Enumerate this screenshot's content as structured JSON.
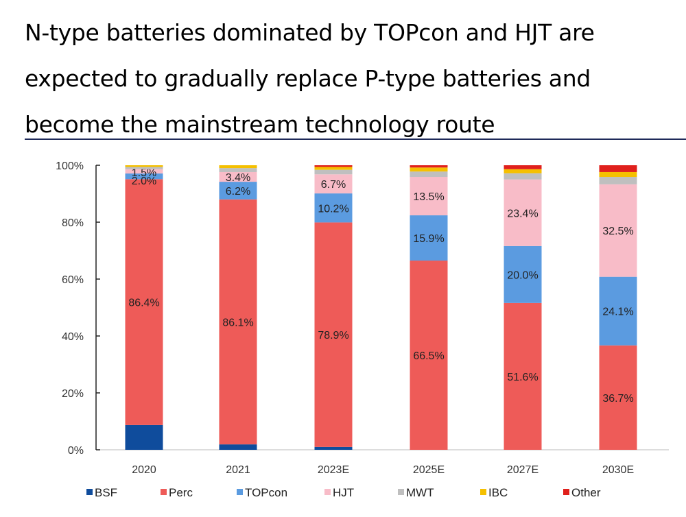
{
  "title_lines": [
    "N-type batteries dominated by TOPcon and HJT are",
    "expected to gradually replace P-type batteries and",
    "become the mainstream technology route"
  ],
  "chart_data": {
    "type": "bar",
    "stacked": true,
    "categories": [
      "2020",
      "2021",
      "2023E",
      "2025E",
      "2027E",
      "2030E"
    ],
    "ylim": [
      0,
      100
    ],
    "yticks": [
      "0%",
      "20%",
      "40%",
      "60%",
      "80%",
      "100%"
    ],
    "grid": false,
    "legend_position": "bottom",
    "series": [
      {
        "name": "BSF",
        "color": "#0f4c9c",
        "values": [
          8.7,
          1.9,
          1.0,
          0,
          0,
          0
        ],
        "labels": [
          "",
          "",
          "",
          "",
          "",
          ""
        ]
      },
      {
        "name": "Perc",
        "color": "#ee5b58",
        "values": [
          86.4,
          86.1,
          78.9,
          66.5,
          51.6,
          36.7
        ],
        "labels": [
          "86.4%",
          "86.1%",
          "78.9%",
          "66.5%",
          "51.6%",
          "36.7%"
        ]
      },
      {
        "name": "TOPcon",
        "color": "#5b9be0",
        "values": [
          2.0,
          6.2,
          10.2,
          15.9,
          20.0,
          24.1
        ],
        "labels": [
          "2.0%",
          "6.2%",
          "10.2%",
          "15.9%",
          "20.0%",
          "24.1%"
        ]
      },
      {
        "name": "HJT",
        "color": "#f8bcc8",
        "values": [
          1.5,
          3.4,
          6.7,
          13.5,
          23.4,
          32.5
        ],
        "labels": [
          "1.5%",
          "3.4%",
          "6.7%",
          "13.5%",
          "23.4%",
          "32.5%"
        ]
      },
      {
        "name": "MWT",
        "color": "#bfbfbf",
        "values": [
          0.8,
          1.4,
          1.6,
          1.9,
          2.2,
          2.6
        ],
        "labels": [
          "",
          "",
          "",
          "",
          "",
          ""
        ]
      },
      {
        "name": "IBC",
        "color": "#f5c000",
        "values": [
          0.6,
          1.0,
          1.0,
          1.4,
          1.4,
          1.7
        ],
        "labels": [
          "",
          "",
          "",
          "",
          "",
          ""
        ]
      },
      {
        "name": "Other",
        "color": "#e0201c",
        "values": [
          0,
          0,
          0.6,
          0.8,
          1.4,
          2.4
        ],
        "labels": [
          "",
          "",
          "",
          "",
          "",
          ""
        ]
      }
    ]
  }
}
